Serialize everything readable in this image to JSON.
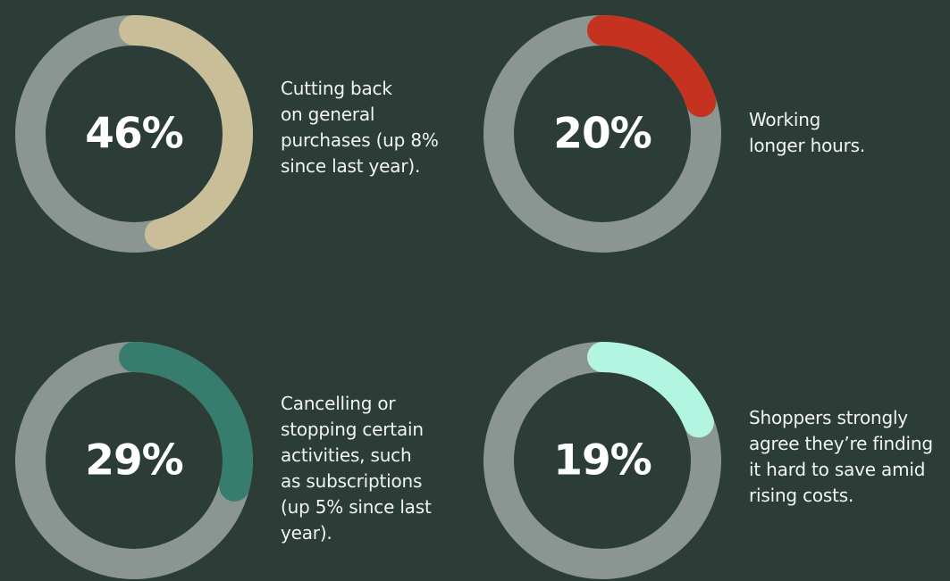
{
  "colors": {
    "background": "#2b3d36",
    "track": "#8b9692",
    "text": "#f2f4ef"
  },
  "chart_data": [
    {
      "type": "pie",
      "value": 46,
      "label": "46%",
      "color": "#c9be97",
      "description_lines": [
        "Cutting back",
        "on general",
        "purchases (up 8%",
        "since last year)."
      ]
    },
    {
      "type": "pie",
      "value": 20,
      "label": "20%",
      "color": "#c5321f",
      "description_lines": [
        "Working",
        "longer hours."
      ]
    },
    {
      "type": "pie",
      "value": 29,
      "label": "29%",
      "color": "#367d6d",
      "description_lines": [
        "Cancelling or",
        "stopping certain",
        "activities, such",
        "as subscriptions",
        "(up 5% since last",
        "year)."
      ]
    },
    {
      "type": "pie",
      "value": 19,
      "label": "19%",
      "color": "#b2f5e0",
      "description_lines": [
        "Shoppers strongly",
        "agree they’re finding",
        "it hard to save amid",
        "rising costs."
      ]
    }
  ]
}
